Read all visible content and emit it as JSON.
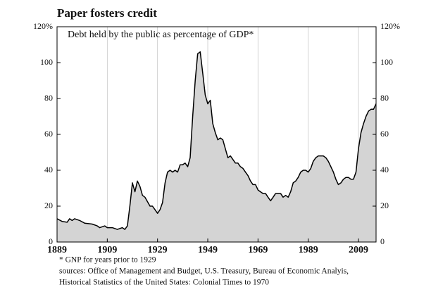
{
  "chart_data": {
    "type": "area",
    "title": "Paper fosters credit",
    "subtitle": "Debt held by the public as percentage of GDP*",
    "notes": [
      "* GNP for years prior to 1929",
      "sources: Office of Management and Budget, U.S. Treasury, Bureau of Economic Analyis,",
      "Historical Statistics of the United States: Colonial Times to 1970"
    ],
    "x": [
      1889,
      1891,
      1893,
      1894,
      1895,
      1896,
      1898,
      1900,
      1903,
      1905,
      1906,
      1908,
      1909,
      1911,
      1913,
      1915,
      1916,
      1917,
      1918,
      1919,
      1920,
      1921,
      1922,
      1923,
      1924,
      1926,
      1927,
      1928,
      1929,
      1930,
      1931,
      1932,
      1933,
      1934,
      1935,
      1936,
      1937,
      1938,
      1939,
      1940,
      1941,
      1942,
      1943,
      1944,
      1945,
      1946,
      1947,
      1948,
      1949,
      1950,
      1951,
      1952,
      1953,
      1954,
      1955,
      1956,
      1957,
      1958,
      1959,
      1960,
      1961,
      1962,
      1963,
      1964,
      1965,
      1966,
      1967,
      1968,
      1969,
      1970,
      1971,
      1972,
      1973,
      1974,
      1975,
      1976,
      1977,
      1978,
      1979,
      1980,
      1981,
      1982,
      1983,
      1984,
      1985,
      1986,
      1987,
      1988,
      1989,
      1990,
      1991,
      1992,
      1993,
      1994,
      1995,
      1996,
      1997,
      1998,
      1999,
      2000,
      2001,
      2002,
      2003,
      2004,
      2005,
      2006,
      2007,
      2008,
      2009,
      2010,
      2011,
      2012,
      2013,
      2014,
      2015,
      2016
    ],
    "values": [
      13,
      11.5,
      11,
      13,
      12,
      13,
      12,
      10.5,
      10,
      9,
      8,
      9,
      8,
      8,
      7,
      8,
      7,
      9,
      20,
      33,
      28,
      34,
      31,
      26,
      25,
      20,
      20,
      18,
      16,
      18,
      22,
      33,
      39,
      40,
      39,
      40,
      39,
      43,
      43,
      44,
      42,
      47,
      70,
      90,
      105,
      106,
      94,
      82,
      77,
      79,
      66,
      61,
      57,
      58,
      57,
      52,
      47,
      48,
      46,
      44,
      44,
      42,
      41,
      39,
      37,
      34,
      32,
      32,
      29,
      28,
      27,
      27,
      25,
      23,
      25,
      27,
      27,
      27,
      25,
      26,
      25,
      28,
      33,
      34,
      36,
      39,
      40,
      40,
      39,
      41,
      45,
      47,
      48,
      48,
      48,
      47,
      45,
      42,
      39,
      35,
      32,
      33,
      35,
      36,
      36,
      35,
      35,
      39,
      52,
      61,
      66,
      70,
      73,
      74,
      74,
      77
    ],
    "color": "#d4d4d4",
    "line_color": "#000000",
    "xlim": [
      1889,
      2016
    ],
    "xticks": [
      1889,
      1909,
      1929,
      1949,
      1969,
      1989,
      2009
    ],
    "ylim": [
      0,
      120
    ],
    "yticks": [
      0,
      20,
      40,
      60,
      80,
      100,
      {
        "value": 120,
        "label": "120%"
      }
    ],
    "grid": true
  }
}
